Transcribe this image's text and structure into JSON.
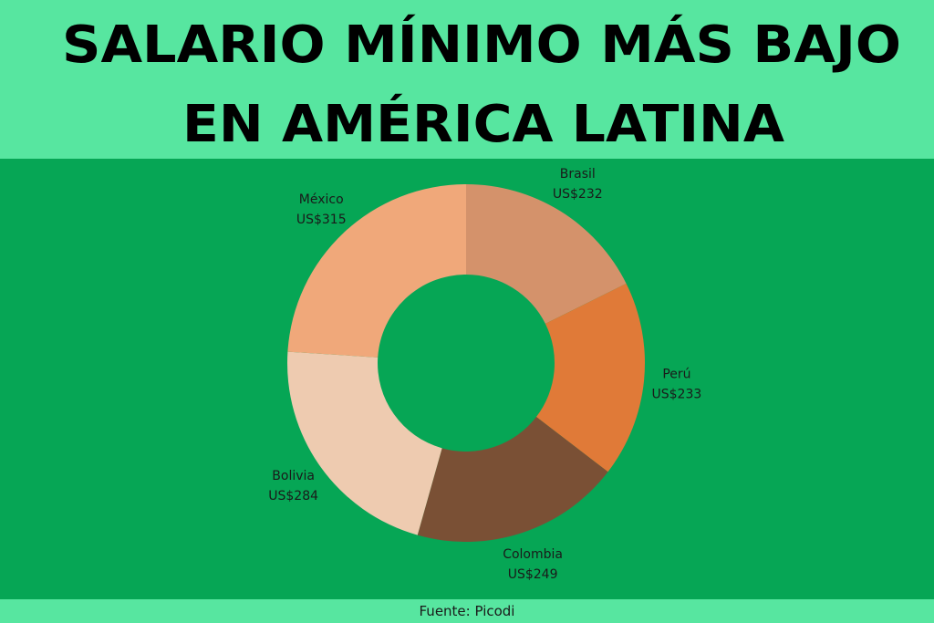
{
  "chart_data": {
    "type": "donut",
    "title": [
      "SALARIO MÍNIMO MÁS BAJO",
      "EN AMÉRICA LATINA"
    ],
    "categories": [
      "Brasil",
      "Perú",
      "Colombia",
      "Bolivia",
      "México"
    ],
    "values": [
      232,
      233,
      249,
      284,
      315
    ],
    "value_labels": [
      "US$232",
      "US$233",
      "US$249",
      "US$284",
      "US$315"
    ],
    "colors": [
      "#d4926b",
      "#e07a38",
      "#7a5035",
      "#eecbb0",
      "#f0a87a"
    ],
    "source": "Fuente: Picodi"
  }
}
